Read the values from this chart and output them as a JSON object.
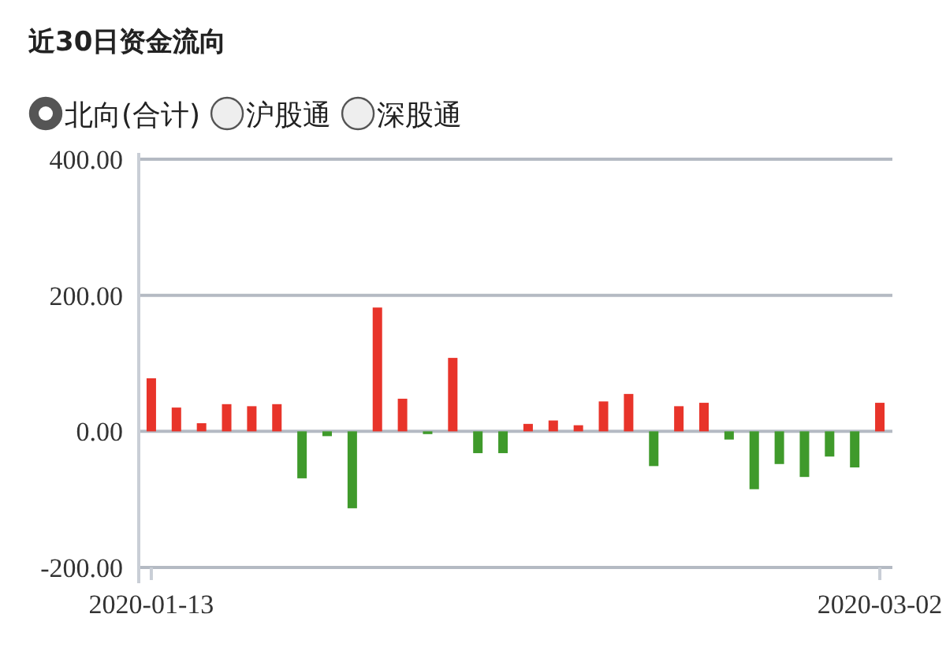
{
  "chart_data": {
    "type": "bar",
    "title": "近30日资金流向",
    "annotations": [
      "北向(合计)",
      "沪股通",
      "深股通"
    ],
    "categories": [
      "2020-01-13",
      null,
      null,
      null,
      null,
      null,
      null,
      null,
      null,
      null,
      null,
      null,
      null,
      null,
      null,
      null,
      null,
      null,
      null,
      null,
      null,
      null,
      null,
      null,
      null,
      null,
      null,
      null,
      null,
      "2020-03-02"
    ],
    "values": [
      78,
      35,
      12,
      40,
      37,
      40,
      -69,
      -7,
      -113,
      182,
      48,
      -4,
      108,
      -32,
      -32,
      11,
      16,
      9,
      44,
      55,
      -51,
      37,
      42,
      -12,
      -85,
      -48,
      -67,
      -37,
      -53,
      42
    ],
    "colors": [
      "#e8342a",
      "#e8342a",
      "#e8342a",
      "#e8342a",
      "#e8342a",
      "#e8342a",
      "#3f9a2b",
      "#3f9a2b",
      "#3f9a2b",
      "#e8342a",
      "#e8342a",
      "#3f9a2b",
      "#e8342a",
      "#3f9a2b",
      "#3f9a2b",
      "#e8342a",
      "#e8342a",
      "#e8342a",
      "#e8342a",
      "#e8342a",
      "#3f9a2b",
      "#e8342a",
      "#e8342a",
      "#3f9a2b",
      "#3f9a2b",
      "#3f9a2b",
      "#3f9a2b",
      "#3f9a2b",
      "#3f9a2b",
      "#e8342a"
    ],
    "ylim": [
      -200,
      400
    ],
    "yticks": [
      {
        "value": -200,
        "label": "-200.00"
      },
      {
        "value": 0,
        "label": "0.00"
      },
      {
        "value": 200,
        "label": "200.00"
      },
      {
        "value": 400,
        "label": "400.00"
      }
    ],
    "grid": "y"
  }
}
